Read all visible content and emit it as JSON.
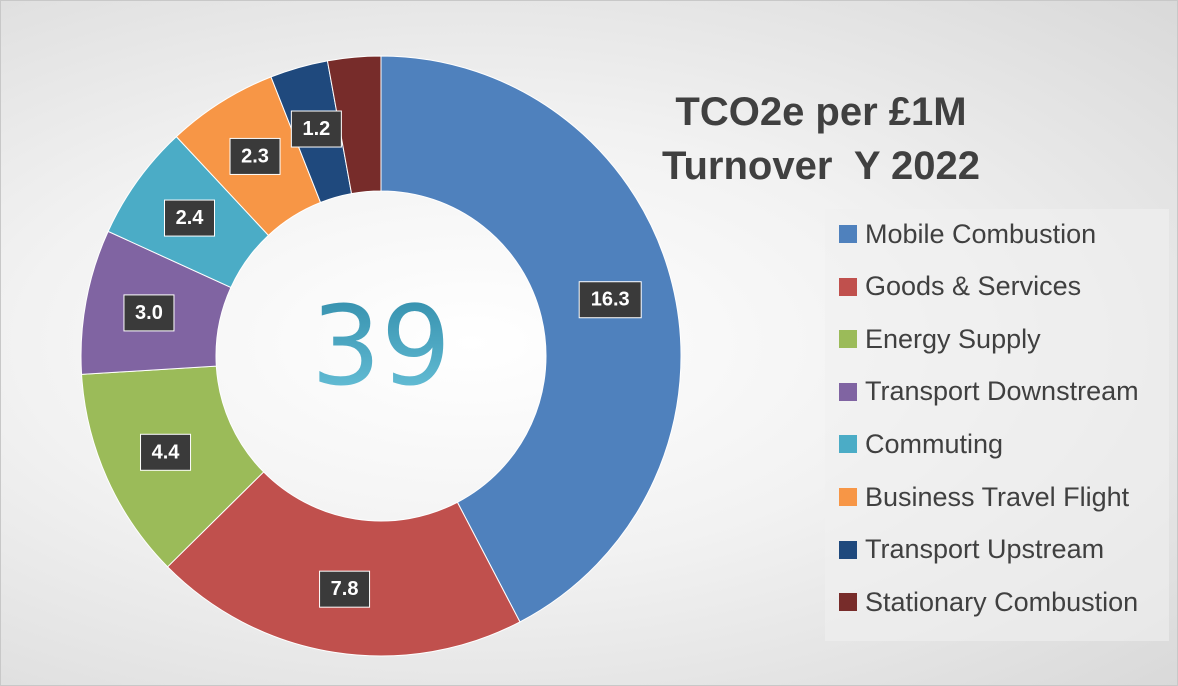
{
  "chart_data": {
    "type": "donut",
    "title": "TCO2e per £1M Turnover  Y 2022",
    "center_text": "39",
    "categories": [
      "Mobile Combustion",
      "Goods & Services",
      "Energy Supply",
      "Transport Downstream",
      "Commuting",
      "Business Travel Flight",
      "Transport Upstream",
      "Stationary Combustion"
    ],
    "values": [
      16.3,
      7.8,
      4.4,
      3.0,
      2.4,
      2.3,
      1.2,
      1.1
    ],
    "value_labels": [
      "16.3",
      "7.8",
      "4.4",
      "3.0",
      "2.4",
      "2.3",
      "1.2",
      null
    ],
    "colors": [
      "#4f81bd",
      "#c0504d",
      "#9bbb59",
      "#8064a2",
      "#4bacc6",
      "#f79646",
      "#1f497d",
      "#772c2a"
    ],
    "legend": "right"
  }
}
